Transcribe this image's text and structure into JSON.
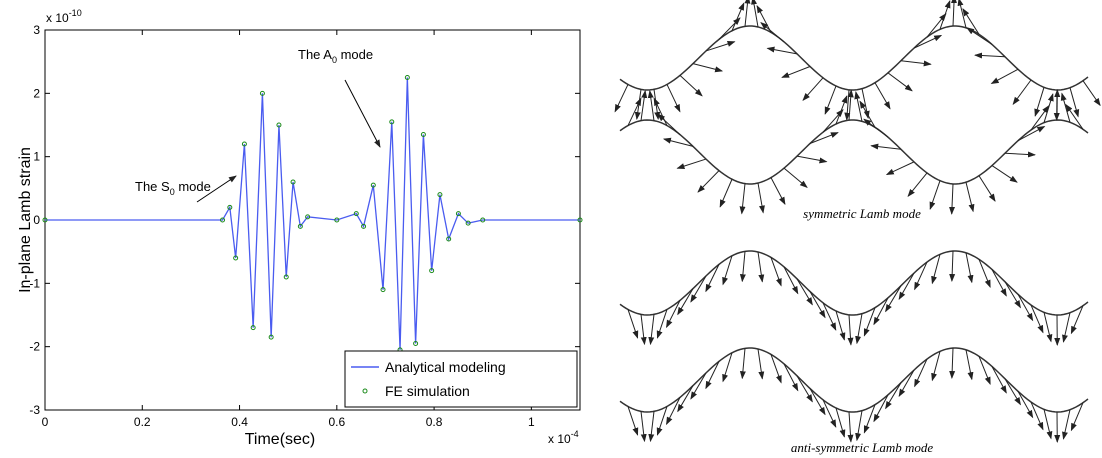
{
  "chart_data": {
    "type": "line",
    "xlim": [
      0,
      1.1
    ],
    "xticks": [
      0,
      0.2,
      0.4,
      0.6,
      0.8,
      1
    ],
    "ylim": [
      -3,
      3
    ],
    "yticks": [
      -3,
      -2,
      -1,
      0,
      1,
      2,
      3
    ],
    "x_label": "Time(sec)",
    "y_label": "In-plane Lamb strain",
    "x_multiplier": [
      "x 10",
      "-4"
    ],
    "y_multiplier": [
      "x 10",
      "-10"
    ],
    "annotations": [
      [
        "The S",
        "0",
        " mode"
      ],
      [
        "The A",
        "0",
        " mode"
      ]
    ],
    "legend": "lower right",
    "x": [
      0,
      0.365,
      0.38,
      0.392,
      0.41,
      0.428,
      0.447,
      0.465,
      0.481,
      0.496,
      0.51,
      0.525,
      0.54,
      0.6,
      0.64,
      0.655,
      0.675,
      0.695,
      0.713,
      0.73,
      0.745,
      0.762,
      0.778,
      0.795,
      0.812,
      0.83,
      0.85,
      0.87,
      0.9,
      1.1
    ],
    "series": [
      {
        "name": "Analytical modeling",
        "color": "#4a5cf0",
        "style": "line",
        "values": [
          0,
          0,
          0.2,
          -0.6,
          1.2,
          -1.7,
          2.0,
          -1.85,
          1.5,
          -0.9,
          0.6,
          -0.1,
          0.05,
          0,
          0.1,
          -0.1,
          0.55,
          -1.1,
          1.55,
          -2.05,
          2.25,
          -1.95,
          1.35,
          -0.8,
          0.4,
          -0.3,
          0.1,
          -0.05,
          0,
          0
        ]
      },
      {
        "name": "FE simulation",
        "color": "#1a8a1a",
        "style": "markers",
        "values": [
          0,
          0,
          0.2,
          -0.6,
          1.2,
          -1.7,
          2.0,
          -1.85,
          1.5,
          -0.9,
          0.6,
          -0.1,
          0.05,
          0,
          0.1,
          -0.1,
          0.55,
          -1.1,
          1.55,
          -2.05,
          2.25,
          -1.95,
          1.35,
          -0.8,
          0.4,
          -0.3,
          0.1,
          -0.05,
          0,
          0
        ]
      }
    ]
  },
  "diagram": {
    "captions": [
      "symmetric Lamb mode",
      "anti-symmetric Lamb mode"
    ]
  }
}
